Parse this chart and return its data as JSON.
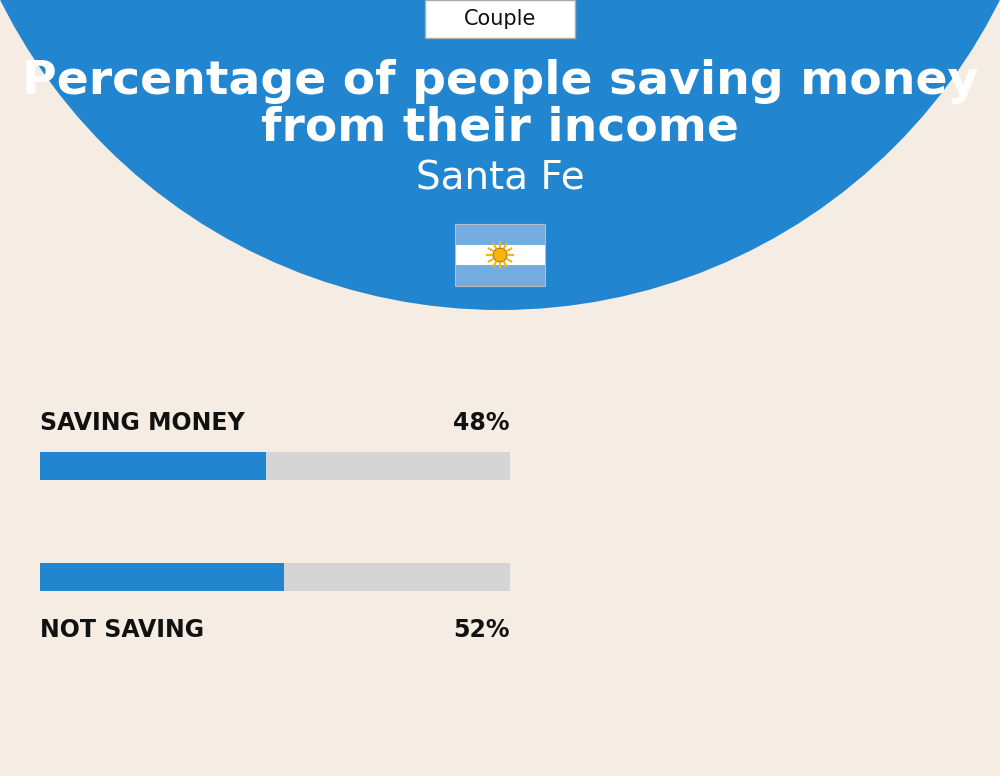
{
  "title_line1": "Percentage of people saving money",
  "title_line2": "from their income",
  "subtitle": "Santa Fe",
  "tab_label": "Couple",
  "saving_label": "SAVING MONEY",
  "saving_value": 48,
  "saving_pct_text": "48%",
  "not_saving_label": "NOT SAVING",
  "not_saving_value": 52,
  "not_saving_pct_text": "52%",
  "bar_blue": "#2185D0",
  "bar_bg": "#D5D5D5",
  "blue_header": "#2185D0",
  "bg_bottom": "#F5EDE3",
  "text_dark": "#111111",
  "text_white": "#FFFFFF",
  "tab_bg": "#FFFFFF",
  "tab_border": "#AAAAAA",
  "flag_blue": "#74ACDF",
  "flag_white": "#FFFFFF",
  "sun_color": "#F6B40E",
  "fig_w": 10.0,
  "fig_h": 7.76,
  "dpi": 100
}
